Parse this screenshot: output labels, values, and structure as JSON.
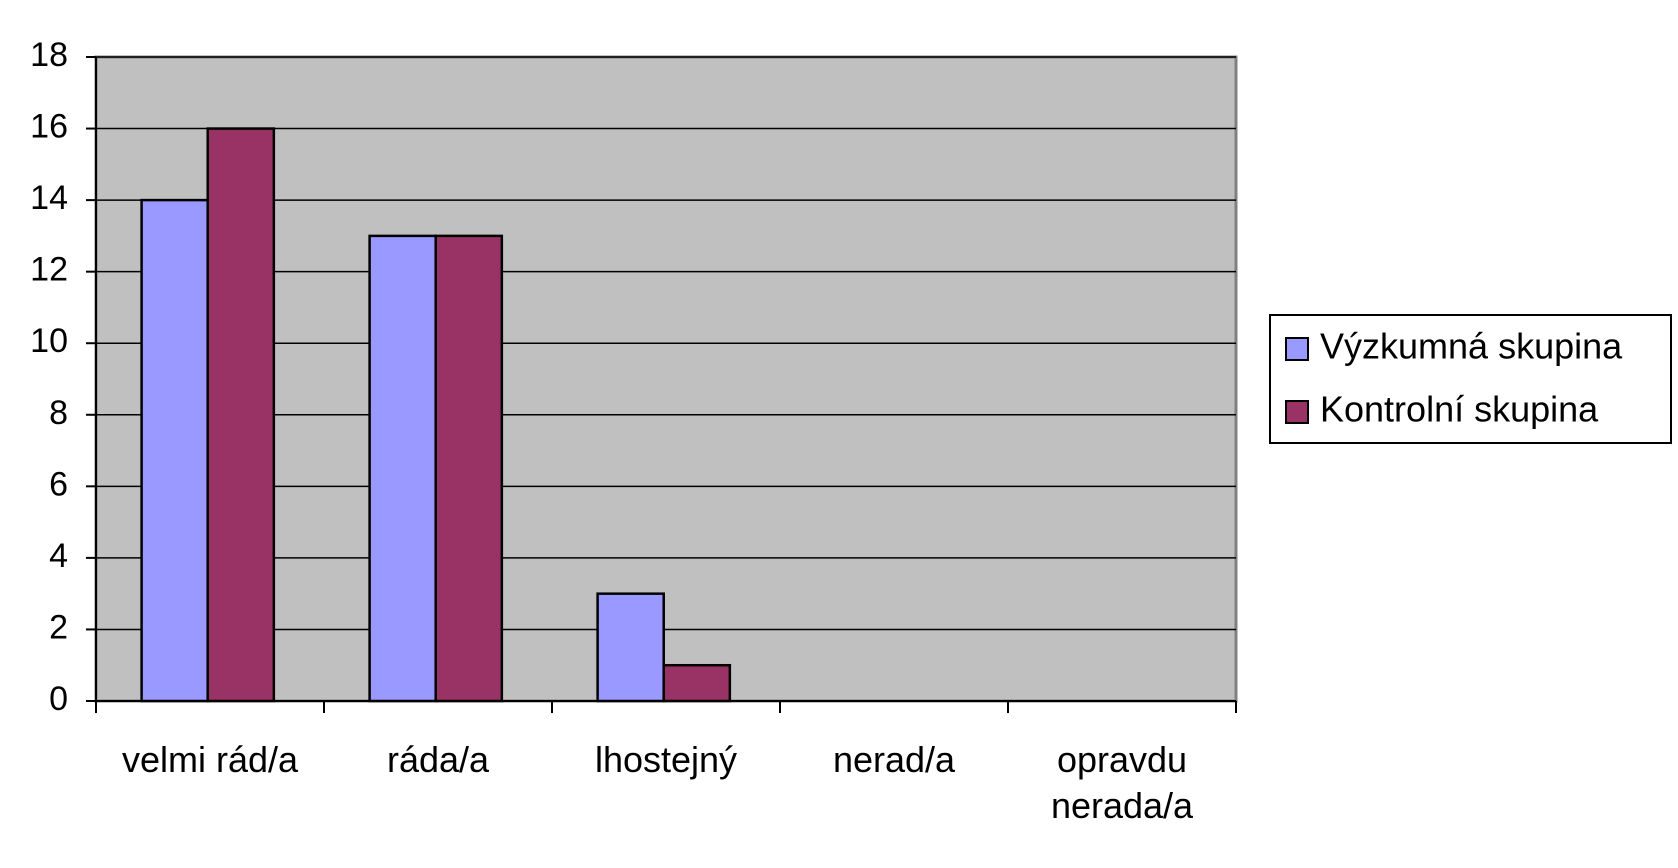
{
  "chart_data": {
    "type": "bar",
    "categories": [
      "velmi rád/a",
      "ráda/a",
      "lhostejný",
      "nerad/a",
      "opravdu nerada/a"
    ],
    "series": [
      {
        "name": "Výzkumná skupina",
        "color": "#9999ff",
        "values": [
          14,
          13,
          3,
          0,
          0
        ]
      },
      {
        "name": "Kontrolní skupina",
        "color": "#993366",
        "values": [
          16,
          13,
          1,
          0,
          0
        ]
      }
    ],
    "ylim": [
      0,
      18
    ],
    "yticks": [
      0,
      2,
      4,
      6,
      8,
      10,
      12,
      14,
      16,
      18
    ],
    "grid": true,
    "legend": "right",
    "background": "#c0c0c0"
  }
}
